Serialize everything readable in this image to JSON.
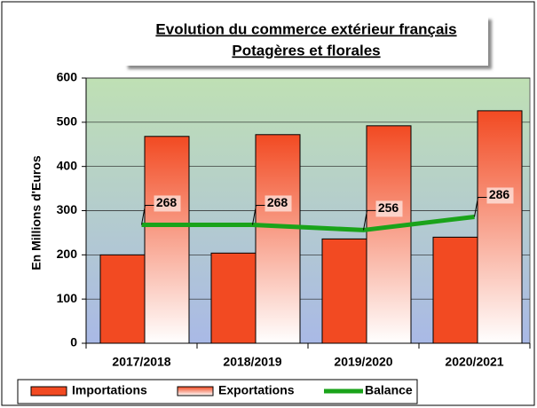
{
  "chart_data": {
    "type": "bar",
    "title": "Evolution du commerce extérieur français",
    "subtitle": "Potagères et florales",
    "y_label": "En Millions d'Euros",
    "categories": [
      "2017/2018",
      "2018/2019",
      "2019/2020",
      "2020/2021"
    ],
    "series": [
      {
        "name": "Importations",
        "color": "#f24a22",
        "type": "bar",
        "values": [
          200,
          204,
          236,
          240
        ]
      },
      {
        "name": "Exportations",
        "color": "#f24a22",
        "type": "bar",
        "values": [
          468,
          472,
          492,
          526
        ]
      },
      {
        "name": "Balance",
        "color": "#1aa31a",
        "type": "line",
        "values": [
          268,
          268,
          256,
          286
        ]
      }
    ],
    "ylim": [
      0,
      600
    ],
    "yticks": [
      0,
      100,
      200,
      300,
      400,
      500,
      600
    ],
    "grid": true,
    "legend": "bottom"
  }
}
